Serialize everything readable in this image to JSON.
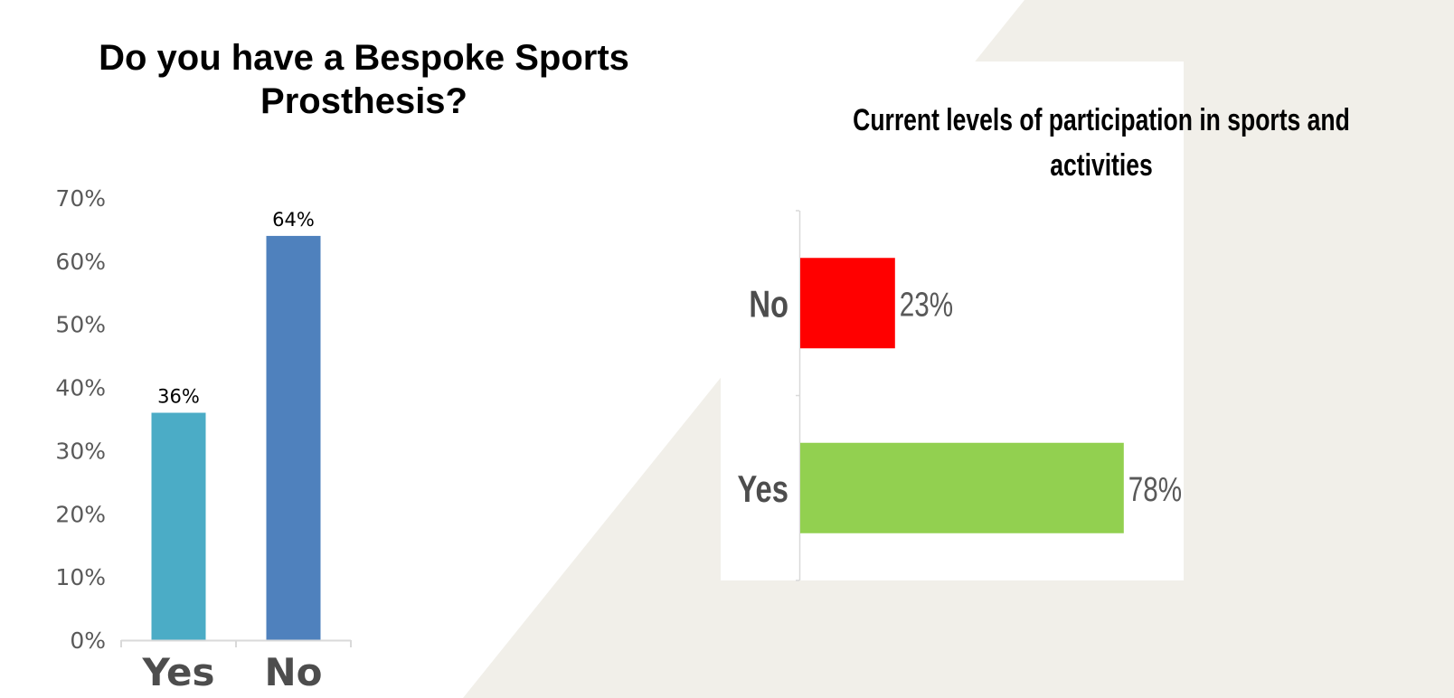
{
  "chart_data": [
    {
      "type": "bar",
      "title": "Do you have a Bespoke Sports Prosthesis?",
      "categories": [
        "Yes",
        "No"
      ],
      "values": [
        36,
        64
      ],
      "data_labels": [
        "36%",
        "64%"
      ],
      "ylim": [
        0,
        70
      ],
      "yticks": [
        "0%",
        "10%",
        "20%",
        "30%",
        "40%",
        "50%",
        "60%",
        "70%"
      ],
      "grid": false,
      "legend": "none",
      "colors": [
        "#4bacc6",
        "#4f81bd"
      ]
    },
    {
      "type": "bar",
      "orientation": "horizontal",
      "title": "Current levels of participation in sports and activities",
      "categories": [
        "No",
        "Yes"
      ],
      "values": [
        23,
        78
      ],
      "data_labels": [
        "23%",
        "78%"
      ],
      "xlim": [
        0,
        100
      ],
      "grid": false,
      "legend": "none",
      "colors": [
        "#ff0000",
        "#92d050"
      ]
    }
  ],
  "colors": {
    "background_shape": "#f1efe9",
    "axis": "#d9d9d9",
    "tick_text": "#595959",
    "category_text": "#4d4d4d"
  }
}
